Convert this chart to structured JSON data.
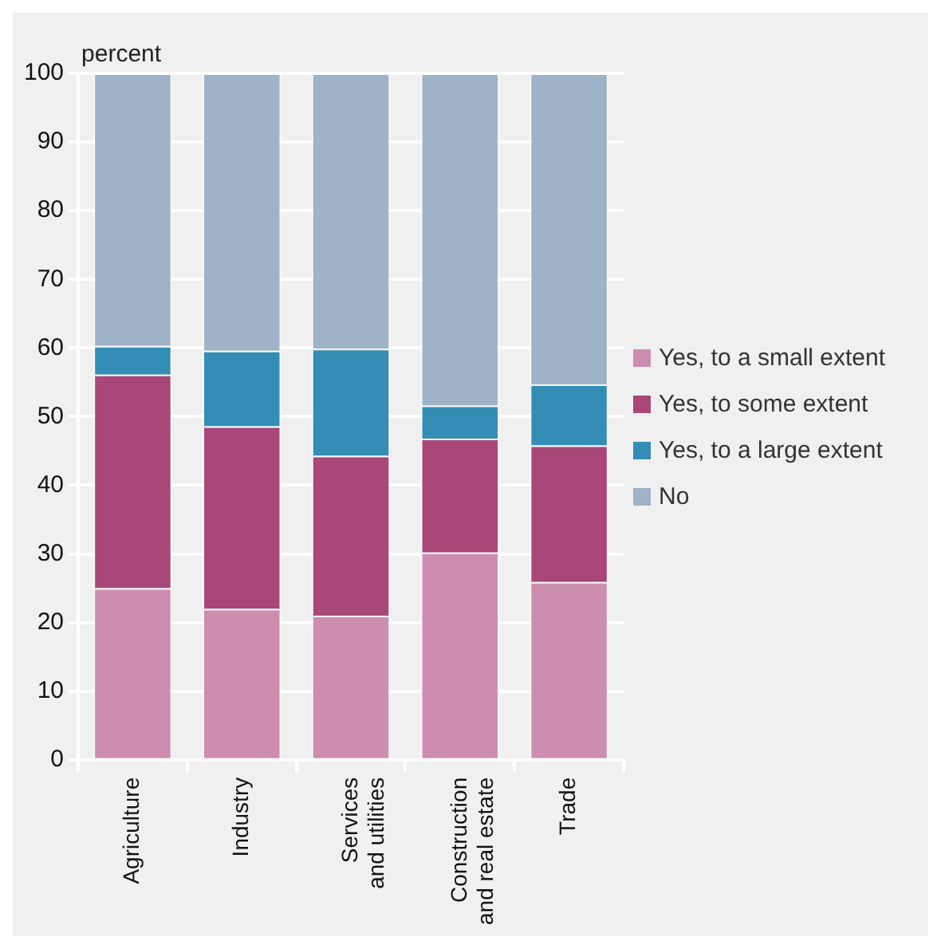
{
  "chart_data": {
    "type": "bar",
    "stacked": true,
    "ylabel": "percent",
    "categories": [
      "Agriculture",
      "Industry",
      "Services\nand utilities",
      "Construction\nand real estate",
      "Trade"
    ],
    "series": [
      {
        "name": "Yes, to a small extent",
        "color": "#cd8daf",
        "values": [
          25,
          22,
          21,
          30.2,
          25.9
        ]
      },
      {
        "name": "Yes, to some extent",
        "color": "#a84778",
        "values": [
          31.1,
          26.6,
          23.3,
          16.6,
          19.9
        ]
      },
      {
        "name": "Yes, to a large extent",
        "color": "#348db5",
        "values": [
          4.2,
          11,
          15.6,
          4.8,
          8.9
        ]
      },
      {
        "name": "No",
        "color": "#9fb3c8",
        "values": [
          39.7,
          40.4,
          40.1,
          48.4,
          45.3
        ]
      }
    ],
    "ylim": [
      0,
      100
    ],
    "yticks": [
      0,
      10,
      20,
      30,
      40,
      50,
      60,
      70,
      80,
      90,
      100
    ],
    "grid": "y",
    "legend": "right"
  }
}
